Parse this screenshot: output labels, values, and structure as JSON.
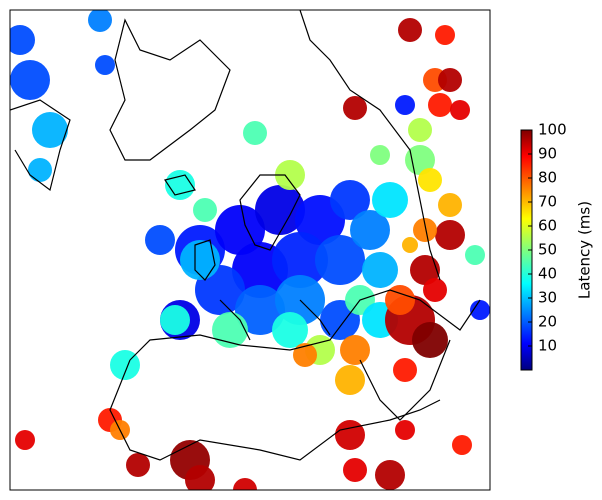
{
  "chart_data": {
    "type": "map",
    "colorbar_label": "Latency (ms)",
    "colormap": "jet",
    "clim": [
      0,
      100
    ],
    "cticks": [
      10,
      20,
      30,
      40,
      50,
      60,
      70,
      80,
      90,
      100
    ],
    "points": [
      15,
      12,
      10,
      14,
      18,
      12,
      16,
      20,
      18,
      10,
      22,
      25,
      30,
      25,
      35,
      30,
      20,
      20,
      40,
      45,
      40,
      55,
      45,
      35,
      20,
      30,
      20,
      25,
      20,
      30,
      40,
      45,
      45,
      55,
      50,
      55,
      50,
      65,
      15,
      95,
      80,
      95,
      85,
      90,
      95,
      85,
      70,
      95,
      75,
      95,
      90,
      45,
      15,
      95,
      100,
      80,
      75,
      70,
      85,
      75,
      40,
      85,
      75,
      90,
      95,
      98,
      95,
      92,
      90,
      95,
      90,
      92,
      85,
      70
    ]
  }
}
